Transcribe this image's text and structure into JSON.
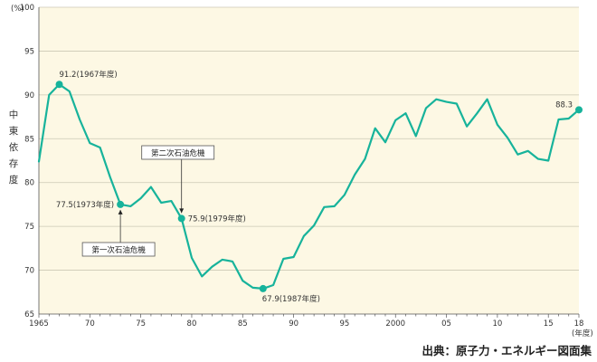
{
  "chart_data": {
    "type": "line",
    "x_range": [
      1965,
      2018
    ],
    "ylim": [
      65,
      100
    ],
    "y_ticks": [
      65,
      70,
      75,
      80,
      85,
      90,
      95,
      100
    ],
    "x_ticks": [
      {
        "year": 1965,
        "label": "1965"
      },
      {
        "year": 1970,
        "label": "70"
      },
      {
        "year": 1975,
        "label": "75"
      },
      {
        "year": 1980,
        "label": "80"
      },
      {
        "year": 1985,
        "label": "85"
      },
      {
        "year": 1990,
        "label": "90"
      },
      {
        "year": 1995,
        "label": "95"
      },
      {
        "year": 2000,
        "label": "2000"
      },
      {
        "year": 2005,
        "label": "05"
      },
      {
        "year": 2010,
        "label": "10"
      },
      {
        "year": 2015,
        "label": "15"
      },
      {
        "year": 2018,
        "label": "18"
      }
    ],
    "y_unit": "(%)",
    "x_unit": "(年度)",
    "ylabel": "中東依存度",
    "grid": true,
    "series": [
      {
        "x": [
          1965,
          1966,
          1967,
          1968,
          1969,
          1970,
          1971,
          1972,
          1973,
          1974,
          1975,
          1976,
          1977,
          1978,
          1979,
          1980,
          1981,
          1982,
          1983,
          1984,
          1985,
          1986,
          1987,
          1988,
          1989,
          1990,
          1991,
          1992,
          1993,
          1994,
          1995,
          1996,
          1997,
          1998,
          1999,
          2000,
          2001,
          2002,
          2003,
          2004,
          2005,
          2006,
          2007,
          2008,
          2009,
          2010,
          2011,
          2012,
          2013,
          2014,
          2015,
          2016,
          2017,
          2018
        ],
        "y": [
          82.4,
          90.0,
          91.2,
          90.4,
          87.2,
          84.5,
          84.0,
          80.6,
          77.5,
          77.3,
          78.2,
          79.5,
          77.7,
          77.9,
          75.9,
          71.4,
          69.3,
          70.4,
          71.2,
          71.0,
          68.8,
          68.0,
          67.9,
          68.3,
          71.3,
          71.5,
          73.9,
          75.1,
          77.2,
          77.3,
          78.6,
          80.9,
          82.7,
          86.2,
          84.6,
          87.1,
          87.9,
          85.3,
          88.5,
          89.5,
          89.2,
          89.0,
          86.4,
          87.9,
          89.5,
          86.6,
          85.1,
          83.2,
          83.6,
          82.7,
          82.5,
          87.2,
          87.3,
          88.3
        ]
      }
    ],
    "highlights": [
      {
        "x": 1967,
        "y": 91.2,
        "label": "91.2(1967年度)"
      },
      {
        "x": 1973,
        "y": 77.5,
        "label": "77.5(1973年度)"
      },
      {
        "x": 1979,
        "y": 75.9,
        "label": "75.9(1979年度)"
      },
      {
        "x": 1987,
        "y": 67.9,
        "label": "67.9(1987年度)"
      },
      {
        "x": 2018,
        "y": 88.3,
        "label": "88.3"
      }
    ],
    "callouts": [
      {
        "x": 1973,
        "label": "第一次石油危機"
      },
      {
        "x": 1979,
        "label": "第二次石油危機"
      }
    ],
    "source": "出典：原子力・エネルギー図面集"
  },
  "colors": {
    "plot_bg": "#fdf8e4",
    "grid": "#ccc8b4",
    "line": "#17b39b",
    "axis": "#555555"
  }
}
